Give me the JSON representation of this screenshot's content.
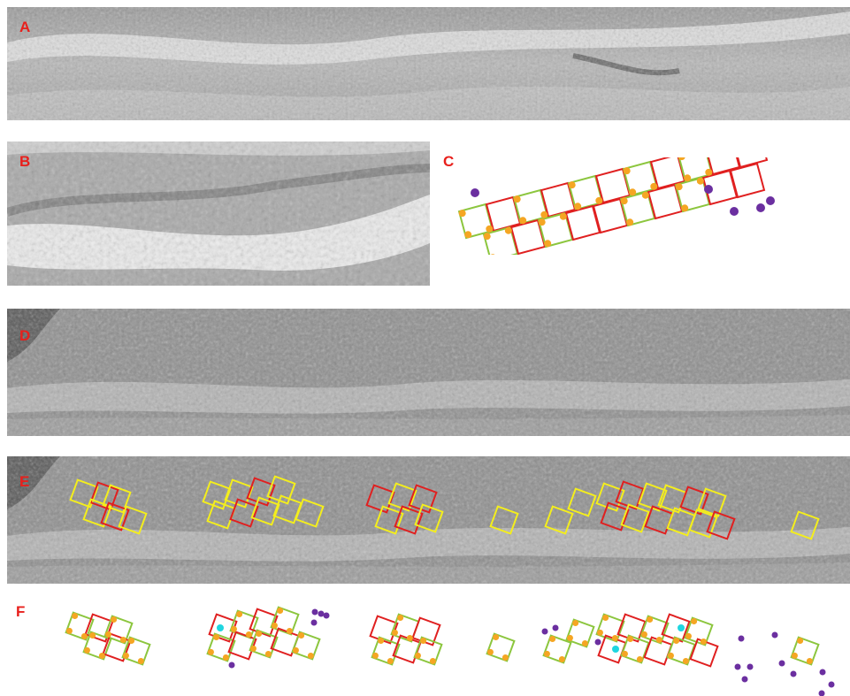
{
  "panels": {
    "a": {
      "label": "A"
    },
    "b": {
      "label": "B"
    },
    "c": {
      "label": "C"
    },
    "d": {
      "label": "D"
    },
    "e": {
      "label": "E"
    },
    "f": {
      "label": "F"
    }
  },
  "colors": {
    "label": "#e8201c",
    "square_red": "#e02020",
    "square_green": "#8cc63e",
    "square_yellow": "#f4ee1c",
    "particle_orange": "#f5a623",
    "particle_purple": "#6b2fa0",
    "particle_cyan": "#1fd6e0"
  }
}
